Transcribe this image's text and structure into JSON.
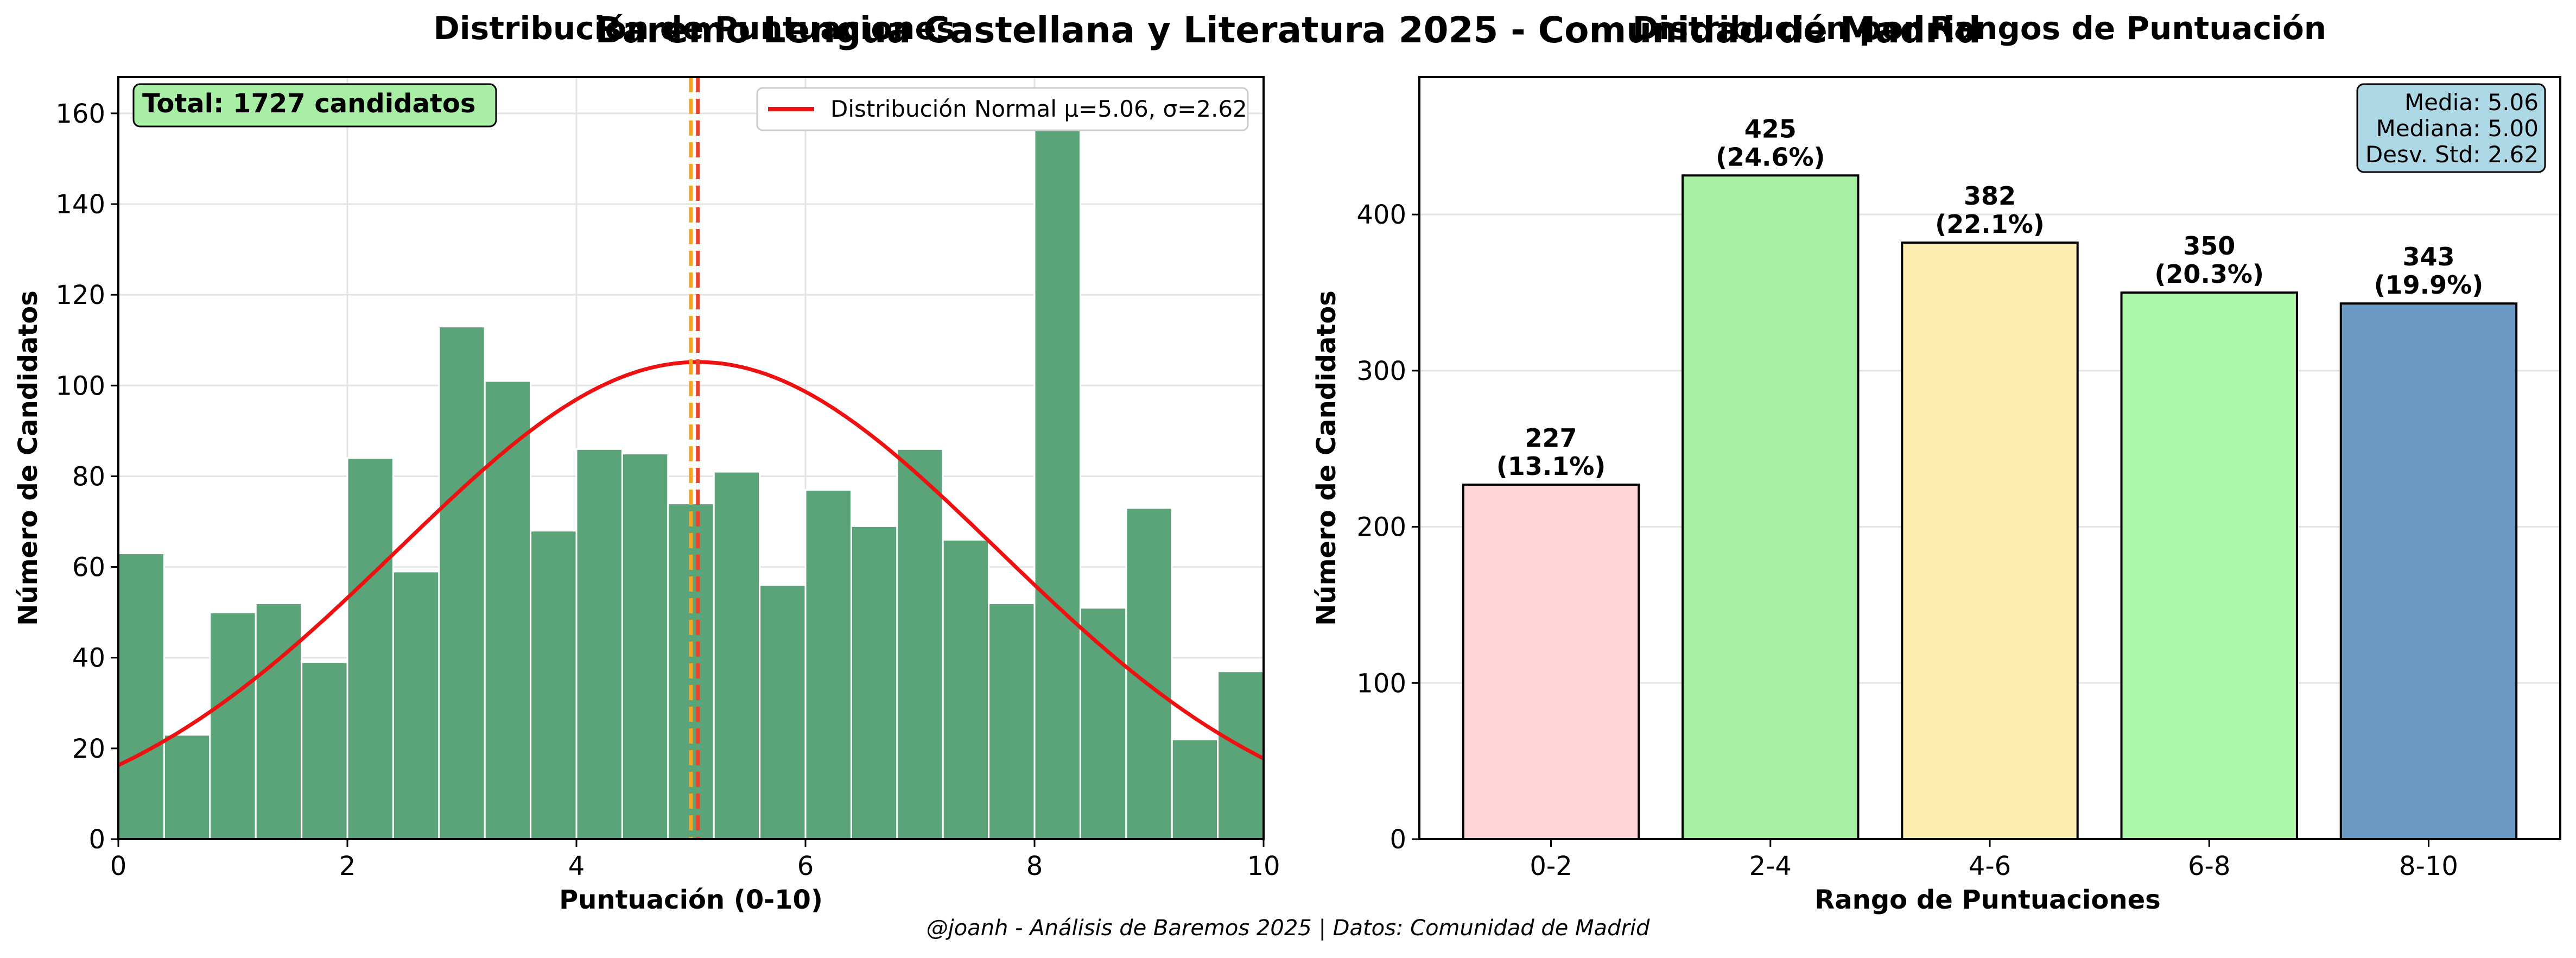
{
  "figure": {
    "suptitle": "Baremo Lengua Castellana y Literatura 2025 - Comunidad de Madrid",
    "footer": "@joanh - Análisis de Baremos 2025 | Datos: Comunidad de Madrid"
  },
  "chart_data": [
    {
      "type": "bar",
      "title": "Distribución de Puntuaciones",
      "xlabel": "Puntuación (0-10)",
      "ylabel": "Número de Candidatos",
      "xlim": [
        0,
        10
      ],
      "ylim": [
        0,
        168
      ],
      "xticks": [
        0,
        2,
        4,
        6,
        8,
        10
      ],
      "yticks": [
        0,
        20,
        40,
        60,
        80,
        100,
        120,
        140,
        160
      ],
      "grid": true,
      "bin_width": 0.4,
      "bin_starts": [
        0,
        0.4,
        0.8,
        1.2,
        1.6,
        2.0,
        2.4,
        2.8,
        3.2,
        3.6,
        4.0,
        4.4,
        4.8,
        5.2,
        5.6,
        6.0,
        6.4,
        6.8,
        7.2,
        7.6,
        8.0,
        8.4,
        8.8,
        9.2,
        9.6
      ],
      "values": [
        63,
        23,
        50,
        52,
        39,
        84,
        59,
        113,
        101,
        68,
        86,
        85,
        74,
        81,
        56,
        77,
        69,
        86,
        66,
        52,
        160,
        51,
        73,
        22,
        37
      ],
      "bar_color": "#5ba378",
      "normal_curve": {
        "mu": 5.06,
        "sigma": 2.62,
        "total": 1727,
        "color": "#ee1111",
        "legend": "Distribución Normal μ=5.06, σ=2.62"
      },
      "vlines": [
        {
          "x": 5.0,
          "color": "#f5a623"
        },
        {
          "x": 5.06,
          "color": "#e8452c"
        }
      ],
      "annotation": "Total: 1727 candidatos",
      "legend_placement": "top-right"
    },
    {
      "type": "bar",
      "title": "Distribución por Rangos de Puntuación",
      "xlabel": "Rango de Puntuaciones",
      "ylabel": "Número de Candidatos",
      "ylim": [
        0,
        488
      ],
      "yticks": [
        0,
        100,
        200,
        300,
        400
      ],
      "grid": true,
      "categories": [
        "0-2",
        "2-4",
        "4-6",
        "6-8",
        "8-10"
      ],
      "values": [
        227,
        425,
        382,
        350,
        343
      ],
      "percent_labels": [
        "(13.1%)",
        "(24.6%)",
        "(22.1%)",
        "(20.3%)",
        "(19.9%)"
      ],
      "colors": [
        "#ffd5d8",
        "#a8f0a4",
        "#fdedb0",
        "#adf8a8",
        "#6a9ac4"
      ],
      "stats_box": [
        "Media: 5.06",
        "Mediana: 5.00",
        "Desv. Std: 2.62"
      ]
    }
  ]
}
